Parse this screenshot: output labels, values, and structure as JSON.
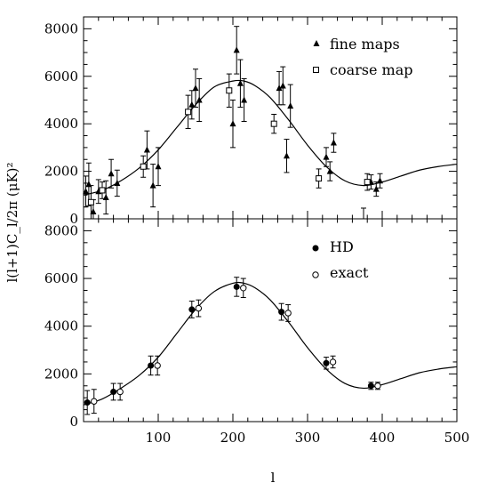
{
  "chart_data": [
    {
      "type": "scatter",
      "panel": "top",
      "xlim": [
        0,
        500
      ],
      "ylim": [
        0,
        8500
      ],
      "yticks": [
        0,
        2000,
        4000,
        6000,
        8000
      ],
      "ytick_labels": [
        "0",
        "2000",
        "4000",
        "6000",
        "8000"
      ],
      "legend_position": "top-right",
      "model_curve": {
        "x": [
          0,
          25,
          50,
          75,
          100,
          125,
          150,
          175,
          200,
          215,
          230,
          250,
          275,
          300,
          325,
          350,
          375,
          400,
          425,
          450,
          475,
          500
        ],
        "y": [
          1000,
          1200,
          1600,
          2150,
          2900,
          3850,
          4800,
          5550,
          5800,
          5800,
          5600,
          5100,
          4150,
          3100,
          2200,
          1600,
          1400,
          1550,
          1800,
          2050,
          2200,
          2300
        ]
      },
      "series": [
        {
          "name": "fine maps",
          "marker": "triangle",
          "points": [
            {
              "x": 3,
              "y": 1150,
              "err": 650
            },
            {
              "x": 7,
              "y": 1450,
              "err": 900
            },
            {
              "x": 13,
              "y": 300,
              "err": 500
            },
            {
              "x": 20,
              "y": 1150,
              "err": 500
            },
            {
              "x": 30,
              "y": 900,
              "err": 700
            },
            {
              "x": 37,
              "y": 1900,
              "err": 600
            },
            {
              "x": 45,
              "y": 1500,
              "err": 550
            },
            {
              "x": 85,
              "y": 2900,
              "err": 800
            },
            {
              "x": 93,
              "y": 1400,
              "err": 900
            },
            {
              "x": 100,
              "y": 2200,
              "err": 800
            },
            {
              "x": 145,
              "y": 4800,
              "err": 600
            },
            {
              "x": 150,
              "y": 5500,
              "err": 800
            },
            {
              "x": 155,
              "y": 5000,
              "err": 900
            },
            {
              "x": 200,
              "y": 4000,
              "err": 1000
            },
            {
              "x": 205,
              "y": 7100,
              "err": 1000
            },
            {
              "x": 210,
              "y": 5700,
              "err": 1000
            },
            {
              "x": 215,
              "y": 5000,
              "err": 900
            },
            {
              "x": 262,
              "y": 5500,
              "err": 700
            },
            {
              "x": 267,
              "y": 5600,
              "err": 800
            },
            {
              "x": 272,
              "y": 2650,
              "err": 700
            },
            {
              "x": 277,
              "y": 4750,
              "err": 900
            },
            {
              "x": 325,
              "y": 2600,
              "err": 400
            },
            {
              "x": 330,
              "y": 2000,
              "err": 400
            },
            {
              "x": 335,
              "y": 3200,
              "err": 400
            },
            {
              "x": 385,
              "y": 1550,
              "err": 300
            },
            {
              "x": 392,
              "y": 1250,
              "err": 300
            },
            {
              "x": 397,
              "y": 1600,
              "err": 300
            }
          ]
        },
        {
          "name": "coarse map",
          "marker": "open-square",
          "points": [
            {
              "x": 10,
              "y": 700,
              "err": 700
            },
            {
              "x": 25,
              "y": 1200,
              "err": 350
            },
            {
              "x": 80,
              "y": 2200,
              "err": 450
            },
            {
              "x": 140,
              "y": 4500,
              "err": 700
            },
            {
              "x": 195,
              "y": 5400,
              "err": 700
            },
            {
              "x": 255,
              "y": 4000,
              "err": 400
            },
            {
              "x": 315,
              "y": 1700,
              "err": 400
            },
            {
              "x": 380,
              "y": 1550,
              "err": 350
            }
          ]
        }
      ],
      "extra_error_bars": [
        {
          "x": 375,
          "y": 200,
          "err": 250
        }
      ]
    },
    {
      "type": "scatter",
      "panel": "bottom",
      "xlim": [
        0,
        500
      ],
      "ylim": [
        0,
        8500
      ],
      "yticks": [
        0,
        2000,
        4000,
        6000,
        8000
      ],
      "ytick_labels": [
        "0",
        "2000",
        "4000",
        "6000",
        "8000"
      ],
      "xticks": [
        100,
        200,
        300,
        400,
        500
      ],
      "xtick_labels": [
        "100",
        "200",
        "300",
        "400",
        "500"
      ],
      "xlabel": "l",
      "ylabel": "l(l+1)C_l/2π  (μK)²",
      "legend_position": "top-right",
      "model_curve": {
        "x": [
          0,
          25,
          50,
          75,
          100,
          125,
          150,
          175,
          200,
          215,
          230,
          250,
          275,
          300,
          325,
          350,
          375,
          400,
          425,
          450,
          475,
          500
        ],
        "y": [
          700,
          950,
          1400,
          1950,
          2700,
          3700,
          4700,
          5450,
          5800,
          5800,
          5600,
          5100,
          4150,
          3100,
          2200,
          1600,
          1400,
          1550,
          1800,
          2050,
          2200,
          2300
        ]
      },
      "series": [
        {
          "name": "HD",
          "marker": "filled-circle",
          "points": [
            {
              "x": 5,
              "y": 800,
              "err": 500
            },
            {
              "x": 40,
              "y": 1250,
              "err": 350
            },
            {
              "x": 90,
              "y": 2350,
              "err": 400
            },
            {
              "x": 145,
              "y": 4700,
              "err": 350
            },
            {
              "x": 205,
              "y": 5650,
              "err": 400
            },
            {
              "x": 265,
              "y": 4600,
              "err": 350
            },
            {
              "x": 325,
              "y": 2450,
              "err": 250
            },
            {
              "x": 385,
              "y": 1500,
              "err": 150
            }
          ]
        },
        {
          "name": "exact",
          "marker": "open-circle",
          "points": [
            {
              "x": 14,
              "y": 850,
              "err": 500
            },
            {
              "x": 49,
              "y": 1250,
              "err": 350
            },
            {
              "x": 99,
              "y": 2350,
              "err": 400
            },
            {
              "x": 154,
              "y": 4750,
              "err": 350
            },
            {
              "x": 214,
              "y": 5600,
              "err": 400
            },
            {
              "x": 274,
              "y": 4550,
              "err": 350
            },
            {
              "x": 334,
              "y": 2500,
              "err": 250
            },
            {
              "x": 394,
              "y": 1500,
              "err": 150
            }
          ]
        }
      ]
    }
  ]
}
